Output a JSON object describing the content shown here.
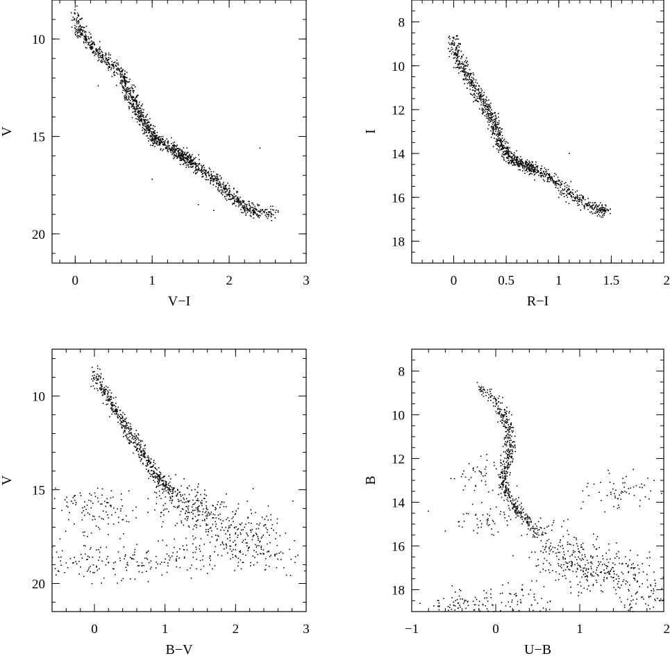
{
  "chart_data": [
    {
      "type": "scatter",
      "xlabel": "V−I",
      "ylabel": "V",
      "xlim": [
        -0.3,
        3.0
      ],
      "ylim": [
        21.5,
        8.0
      ],
      "y_inverted": true,
      "xticks": [
        "0",
        "1",
        "2",
        "3"
      ],
      "yticks": [
        "10",
        "15",
        "20"
      ],
      "grid": false,
      "points": [
        [
          0.0,
          8.7
        ],
        [
          0.05,
          9.5
        ],
        [
          0.1,
          9.8
        ],
        [
          0.2,
          10.3
        ],
        [
          0.3,
          10.7
        ],
        [
          0.4,
          11.0
        ],
        [
          0.5,
          11.4
        ],
        [
          0.6,
          11.9
        ],
        [
          0.65,
          12.3
        ],
        [
          0.7,
          12.8
        ],
        [
          0.75,
          13.2
        ],
        [
          0.8,
          13.6
        ],
        [
          0.85,
          13.9
        ],
        [
          0.9,
          14.3
        ],
        [
          0.95,
          14.6
        ],
        [
          1.0,
          14.9
        ],
        [
          1.05,
          15.1
        ],
        [
          1.1,
          15.3
        ],
        [
          1.2,
          15.5
        ],
        [
          1.3,
          15.7
        ],
        [
          1.35,
          15.9
        ],
        [
          1.4,
          16.0
        ],
        [
          1.45,
          16.2
        ],
        [
          1.5,
          16.3
        ],
        [
          1.6,
          16.6
        ],
        [
          1.7,
          16.9
        ],
        [
          1.8,
          17.2
        ],
        [
          1.9,
          17.6
        ],
        [
          2.0,
          18.0
        ],
        [
          2.1,
          18.3
        ],
        [
          2.2,
          18.6
        ],
        [
          2.3,
          18.8
        ],
        [
          2.4,
          18.9
        ],
        [
          2.6,
          18.9
        ],
        [
          2.4,
          15.6
        ],
        [
          1.0,
          17.2
        ],
        [
          0.3,
          12.4
        ],
        [
          1.6,
          18.5
        ],
        [
          1.8,
          18.8
        ]
      ]
    },
    {
      "type": "scatter",
      "xlabel": "R−I",
      "ylabel": "I",
      "xlim": [
        -0.4,
        2.0
      ],
      "ylim": [
        19.0,
        7.0
      ],
      "y_inverted": true,
      "xticks": [
        "0",
        "0.5",
        "1",
        "1.5",
        "2"
      ],
      "yticks": [
        "8",
        "10",
        "12",
        "14",
        "16",
        "18"
      ],
      "grid": false,
      "points": [
        [
          0.0,
          8.7
        ],
        [
          0.02,
          9.3
        ],
        [
          0.05,
          9.8
        ],
        [
          0.1,
          10.2
        ],
        [
          0.15,
          10.6
        ],
        [
          0.2,
          11.0
        ],
        [
          0.25,
          11.4
        ],
        [
          0.3,
          11.8
        ],
        [
          0.35,
          12.2
        ],
        [
          0.38,
          12.6
        ],
        [
          0.4,
          13.0
        ],
        [
          0.43,
          13.4
        ],
        [
          0.47,
          13.7
        ],
        [
          0.5,
          14.0
        ],
        [
          0.55,
          14.2
        ],
        [
          0.6,
          14.4
        ],
        [
          0.65,
          14.5
        ],
        [
          0.7,
          14.6
        ],
        [
          0.75,
          14.7
        ],
        [
          0.8,
          14.8
        ],
        [
          0.9,
          15.1
        ],
        [
          1.0,
          15.4
        ],
        [
          1.1,
          15.8
        ],
        [
          1.2,
          16.1
        ],
        [
          1.3,
          16.4
        ],
        [
          1.4,
          16.6
        ],
        [
          1.45,
          16.6
        ],
        [
          1.1,
          14.0
        ],
        [
          0.3,
          12.1
        ]
      ]
    },
    {
      "type": "scatter",
      "xlabel": "B−V",
      "ylabel": "V",
      "xlim": [
        -0.6,
        3.0
      ],
      "ylim": [
        21.5,
        7.5
      ],
      "y_inverted": true,
      "xticks": [
        "0",
        "1",
        "2",
        "3"
      ],
      "yticks": [
        "10",
        "15",
        "20"
      ],
      "grid": false,
      "points": [
        [
          0.0,
          8.7
        ],
        [
          0.1,
          9.5
        ],
        [
          0.2,
          10.2
        ],
        [
          0.3,
          10.8
        ],
        [
          0.4,
          11.4
        ],
        [
          0.5,
          12.0
        ],
        [
          0.6,
          12.6
        ],
        [
          0.7,
          13.2
        ],
        [
          0.8,
          13.8
        ],
        [
          0.9,
          14.3
        ],
        [
          1.0,
          14.8
        ],
        [
          1.1,
          15.2
        ],
        [
          1.2,
          15.6
        ],
        [
          1.3,
          15.9
        ],
        [
          1.4,
          16.1
        ],
        [
          1.6,
          16.4
        ],
        [
          1.8,
          16.8
        ],
        [
          2.0,
          17.3
        ],
        [
          2.3,
          17.4
        ],
        [
          2.5,
          16.6
        ],
        [
          2.5,
          18.5
        ],
        [
          -0.4,
          18.9
        ],
        [
          0.2,
          18.9
        ],
        [
          0.8,
          18.8
        ],
        [
          1.4,
          18.6
        ],
        [
          2.0,
          18.2
        ],
        [
          -0.05,
          15.6
        ],
        [
          0.2,
          16.5
        ]
      ]
    },
    {
      "type": "scatter",
      "xlabel": "U−B",
      "ylabel": "B",
      "xlim": [
        -1.0,
        2.0
      ],
      "ylim": [
        19.0,
        7.0
      ],
      "y_inverted": true,
      "xticks": [
        "−1",
        "0",
        "1",
        "2"
      ],
      "yticks": [
        "8",
        "10",
        "12",
        "14",
        "16",
        "18"
      ],
      "grid": false,
      "points": [
        [
          -0.2,
          8.7
        ],
        [
          0.0,
          9.4
        ],
        [
          0.1,
          10.0
        ],
        [
          0.15,
          10.6
        ],
        [
          0.18,
          11.4
        ],
        [
          0.15,
          12.0
        ],
        [
          0.1,
          12.6
        ],
        [
          0.08,
          13.2
        ],
        [
          0.15,
          13.7
        ],
        [
          0.25,
          14.3
        ],
        [
          0.35,
          14.8
        ],
        [
          0.5,
          15.4
        ],
        [
          0.65,
          16.0
        ],
        [
          0.8,
          16.5
        ],
        [
          1.0,
          16.9
        ],
        [
          1.2,
          17.1
        ],
        [
          1.5,
          17.2
        ],
        [
          1.8,
          17.3
        ],
        [
          1.9,
          18.5
        ],
        [
          -0.5,
          18.7
        ],
        [
          -0.2,
          18.9
        ],
        [
          0.3,
          18.6
        ],
        [
          -0.1,
          14.9
        ],
        [
          1.5,
          13.5
        ],
        [
          -0.15,
          12.8
        ]
      ]
    }
  ]
}
